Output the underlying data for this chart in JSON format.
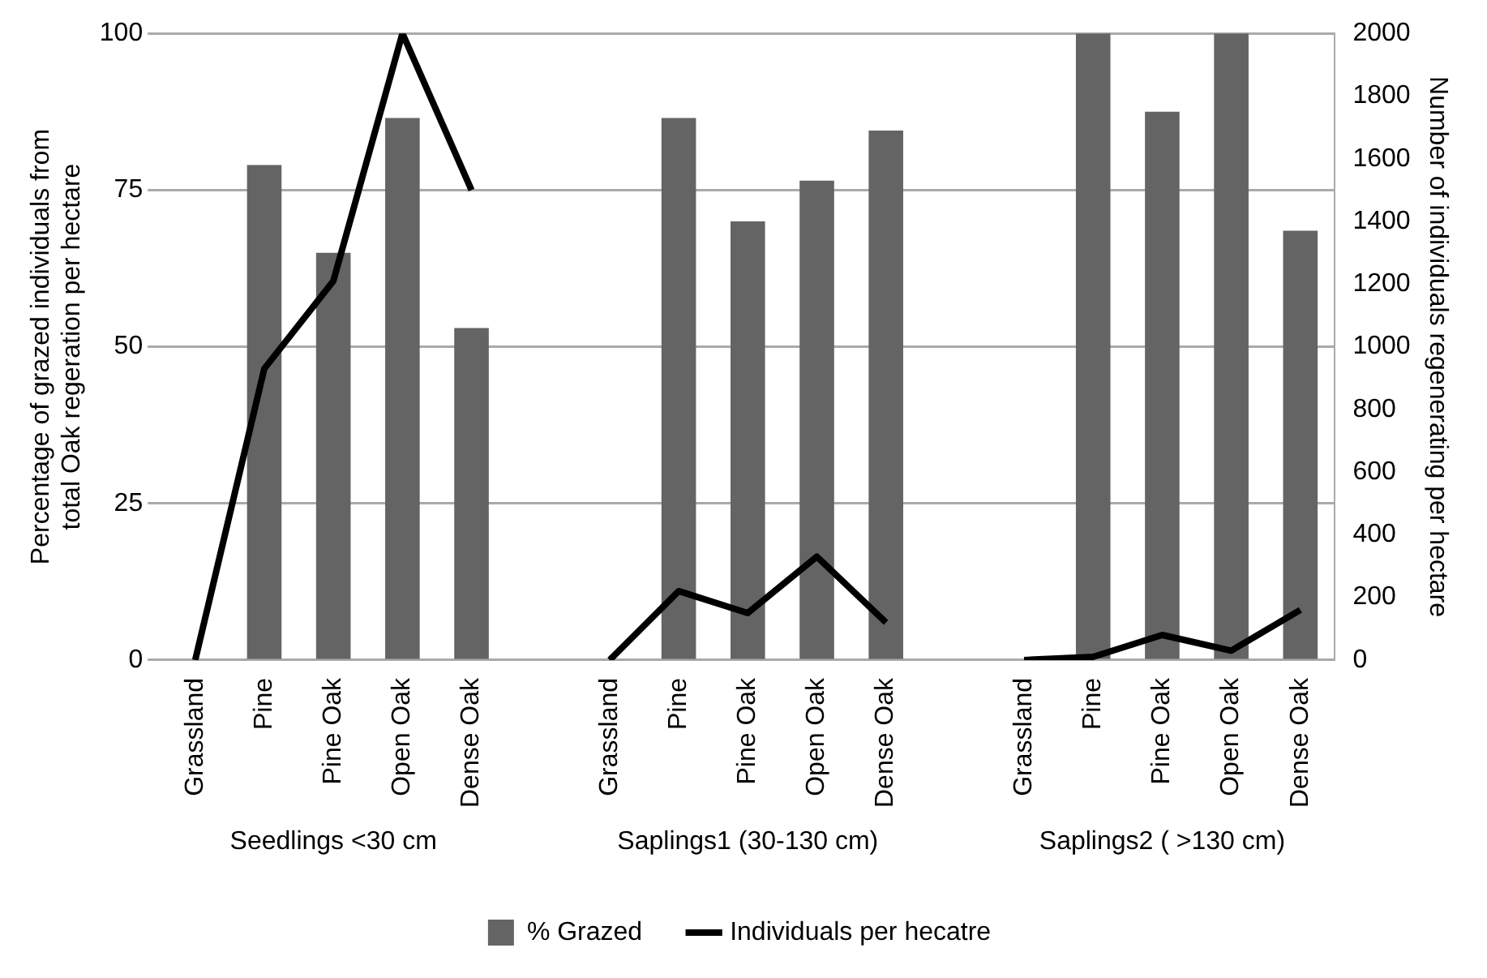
{
  "chart_data": {
    "type": "bar",
    "categories": [
      "Grassland",
      "Pine",
      "Pine Oak",
      "Open Oak",
      "Dense Oak",
      null,
      "Grassland",
      "Pine",
      "Pine Oak",
      "Open Oak",
      "Dense Oak",
      null,
      "Grassland",
      "Pine",
      "Pine Oak",
      "Open Oak",
      "Dense Oak"
    ],
    "series": [
      {
        "name": "% Grazed",
        "color": "#646464",
        "values": [
          0,
          79,
          65,
          86.5,
          53,
          null,
          0,
          86.5,
          70,
          76.5,
          84.5,
          null,
          0,
          100,
          87.5,
          100,
          68.5
        ]
      },
      {
        "name": "Individuals per hecatre",
        "type": "line",
        "axis": "y2",
        "color": "#000000",
        "values": [
          0,
          930,
          1210,
          2000,
          1500,
          null,
          0,
          220,
          150,
          330,
          120,
          null,
          0,
          10,
          80,
          30,
          160
        ]
      }
    ],
    "ylabel": "Percentage of grazed individuals from total Oak regeration per hectare",
    "y2label": "Number of individuals regenerating per hectare",
    "ylim": [
      0,
      100
    ],
    "yticks": [
      0,
      25,
      50,
      75,
      100
    ],
    "y2lim": [
      0,
      2000
    ],
    "y2ticks": [
      0,
      200,
      400,
      600,
      800,
      1000,
      1200,
      1400,
      1600,
      1800,
      2000
    ],
    "annotations": [
      "Seedlings <30 cm",
      "Saplings1 (30-130 cm)",
      "Saplings2 ( >130 cm)"
    ],
    "grid": "y",
    "legend": "bottom",
    "marker": "none",
    "line_style": "solid"
  }
}
